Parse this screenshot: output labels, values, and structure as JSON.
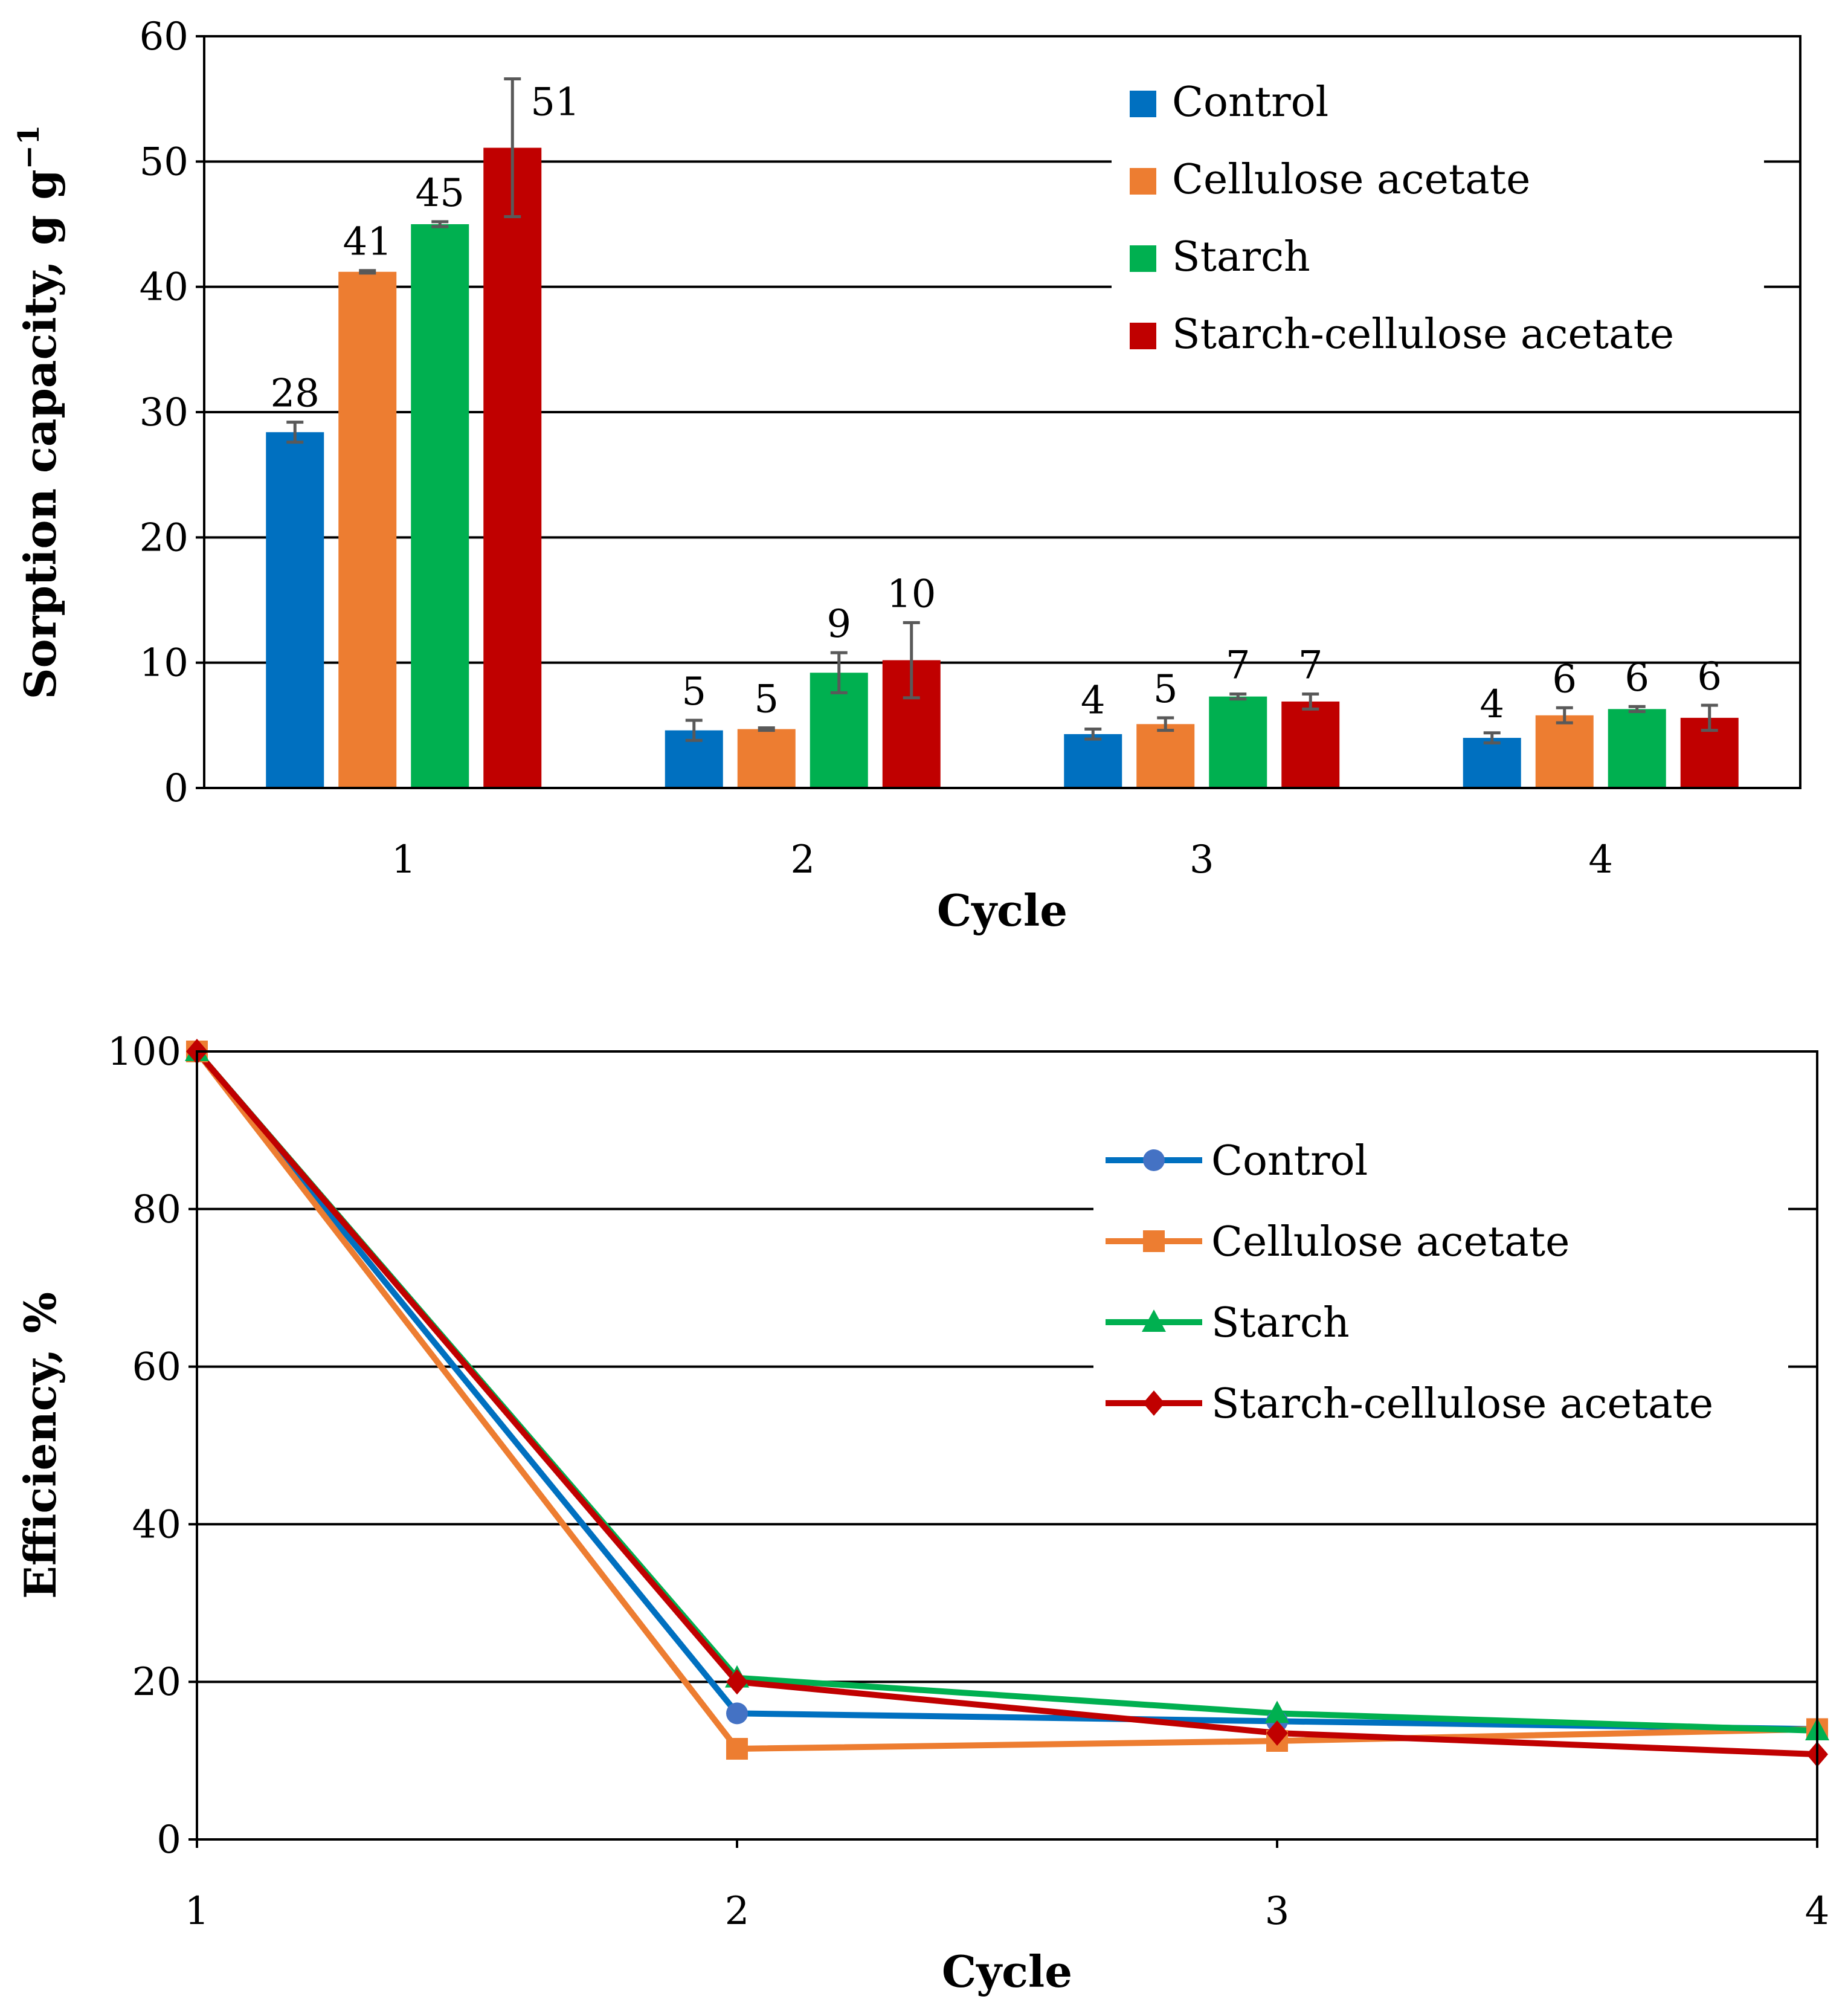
{
  "chart_data": [
    {
      "type": "bar",
      "title": "",
      "xlabel": "Cycle",
      "ylabel": "Sorption capacity, g g",
      "ylabel_superscript": "−1",
      "categories": [
        "1",
        "2",
        "3",
        "4"
      ],
      "ylim": [
        0,
        60
      ],
      "yticks": [
        0,
        10,
        20,
        30,
        40,
        50,
        60
      ],
      "grid": true,
      "legend_position": "top-right",
      "series": [
        {
          "name": "Control",
          "color": "#0070C0",
          "values": [
            28.4,
            4.6,
            4.3,
            4.0
          ],
          "errors": [
            0.8,
            0.8,
            0.4,
            0.4
          ],
          "labels": [
            "28",
            "5",
            "4",
            "4"
          ]
        },
        {
          "name": "Cellulose acetate",
          "color": "#ED7D31",
          "values": [
            41.2,
            4.7,
            5.1,
            5.8
          ],
          "errors": [
            0.1,
            0.1,
            0.5,
            0.6
          ],
          "labels": [
            "41",
            "5",
            "5",
            "6"
          ]
        },
        {
          "name": "Starch",
          "color": "#00B050",
          "values": [
            45.0,
            9.2,
            7.3,
            6.3
          ],
          "errors": [
            0.2,
            1.6,
            0.2,
            0.2
          ],
          "labels": [
            "45",
            "9",
            "7",
            "6"
          ]
        },
        {
          "name": "Starch-cellulose acetate",
          "color": "#C00000",
          "values": [
            51.1,
            10.2,
            6.9,
            5.6
          ],
          "errors": [
            5.5,
            3.0,
            0.6,
            1.0
          ],
          "labels": [
            "51",
            "10",
            "7",
            "6"
          ]
        }
      ]
    },
    {
      "type": "line",
      "title": "",
      "xlabel": "Cycle",
      "ylabel": "Efficiency, %",
      "x": [
        1,
        2,
        3,
        4
      ],
      "xticks": [
        "1",
        "2",
        "3",
        "4"
      ],
      "ylim": [
        0,
        100
      ],
      "yticks": [
        0,
        20,
        40,
        60,
        80,
        100
      ],
      "grid": true,
      "legend_position": "top-right",
      "series": [
        {
          "name": "Control",
          "color": "#0070C0",
          "marker_color": "#4472C4",
          "marker": "circle",
          "values": [
            100,
            16,
            15,
            14
          ]
        },
        {
          "name": "Cellulose acetate",
          "color": "#ED7D31",
          "marker": "square",
          "values": [
            100,
            11.5,
            12.5,
            14
          ]
        },
        {
          "name": "Starch",
          "color": "#00B050",
          "marker": "triangle",
          "values": [
            100,
            20.5,
            16,
            13.8
          ]
        },
        {
          "name": "Starch-cellulose acetate",
          "color": "#C00000",
          "marker": "diamond",
          "values": [
            100,
            20,
            13.5,
            10.8
          ]
        }
      ]
    }
  ]
}
